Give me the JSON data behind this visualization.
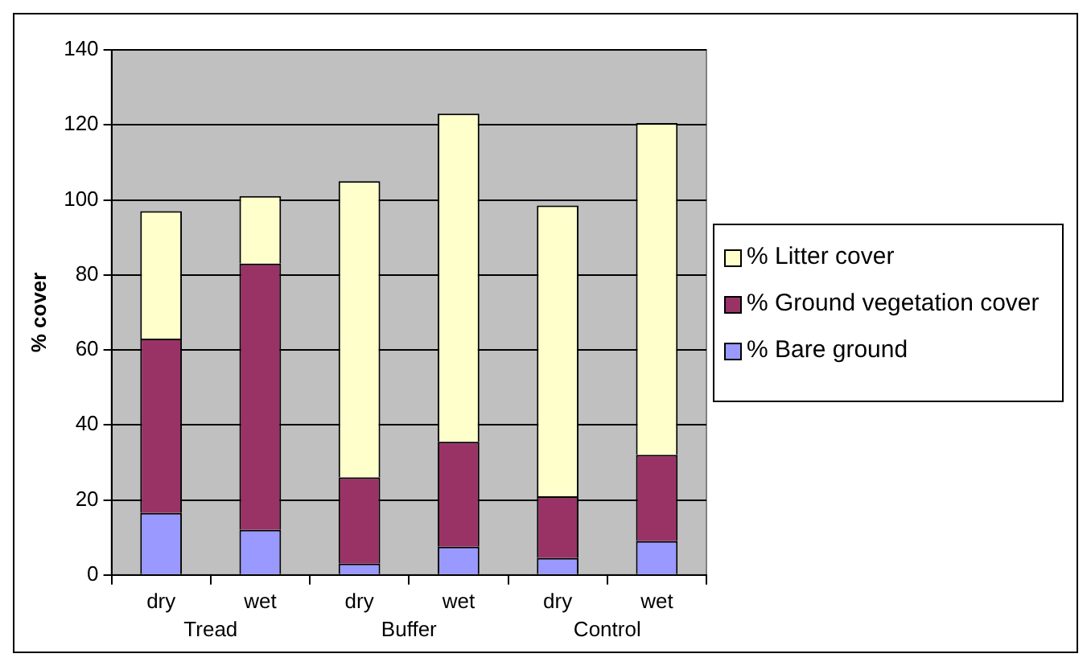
{
  "chart_data": {
    "type": "bar",
    "stacked": true,
    "ylabel": "% cover",
    "categories": [
      "dry",
      "wet",
      "dry",
      "wet",
      "dry",
      "wet"
    ],
    "annotations": [
      "Tread",
      "Buffer",
      "Control"
    ],
    "series": [
      {
        "name": "% Bare ground",
        "color": "#9999ff",
        "values": [
          16.5,
          12,
          3,
          7.5,
          4.5,
          9
        ]
      },
      {
        "name": "% Ground vegetation cover",
        "color": "#993366",
        "values": [
          46.5,
          71,
          23,
          28,
          16.5,
          23
        ]
      },
      {
        "name": "% Litter cover",
        "color": "#ffffcc",
        "values": [
          34,
          18,
          79,
          87.5,
          77.5,
          88.5
        ]
      }
    ],
    "ylim": [
      0,
      140
    ],
    "yticks": [
      0,
      20,
      40,
      60,
      80,
      100,
      120,
      140
    ],
    "grid": "y",
    "legend": "right"
  }
}
